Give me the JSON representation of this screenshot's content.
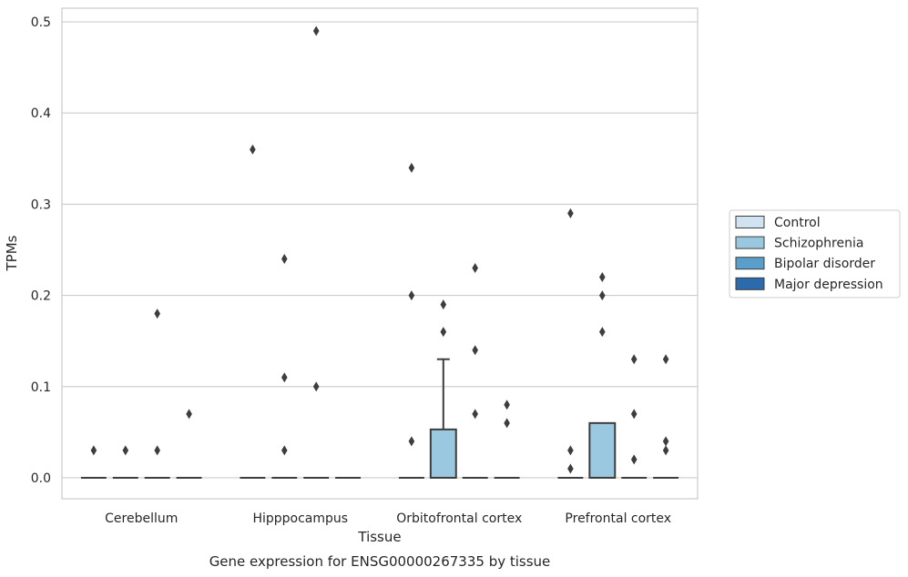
{
  "chart_data": {
    "type": "box",
    "title": "",
    "caption": "Gene expression for ENSG00000267335 by tissue",
    "xlabel": "Tissue",
    "ylabel": "TPMs",
    "ylim": [
      -0.023,
      0.515
    ],
    "yticks": [
      "0.0",
      "0.1",
      "0.2",
      "0.3",
      "0.4",
      "0.5"
    ],
    "ytick_values": [
      0.0,
      0.1,
      0.2,
      0.3,
      0.4,
      0.5
    ],
    "categories": [
      "Cerebellum",
      "Hipppocampus",
      "Orbitofrontal cortex",
      "Prefrontal cortex"
    ],
    "grid": true,
    "legend_position": "right",
    "series": [
      {
        "name": "Control",
        "color": "#d1e2f2",
        "boxes": [
          {
            "q1": 0,
            "median": 0,
            "q3": 0,
            "whisker_low": 0,
            "whisker_high": 0,
            "outliers": [
              0.03
            ]
          },
          {
            "q1": 0,
            "median": 0,
            "q3": 0,
            "whisker_low": 0,
            "whisker_high": 0,
            "outliers": [
              0.36
            ]
          },
          {
            "q1": 0,
            "median": 0,
            "q3": 0,
            "whisker_low": 0,
            "whisker_high": 0,
            "outliers": [
              0.34,
              0.2,
              0.04
            ]
          },
          {
            "q1": 0,
            "median": 0,
            "q3": 0,
            "whisker_low": 0,
            "whisker_high": 0,
            "outliers": [
              0.29,
              0.03,
              0.01
            ]
          }
        ]
      },
      {
        "name": "Schizophrenia",
        "color": "#9ac8e0",
        "boxes": [
          {
            "q1": 0,
            "median": 0,
            "q3": 0,
            "whisker_low": 0,
            "whisker_high": 0,
            "outliers": [
              0.03
            ]
          },
          {
            "q1": 0,
            "median": 0,
            "q3": 0,
            "whisker_low": 0,
            "whisker_high": 0,
            "outliers": [
              0.24,
              0.11,
              0.03
            ]
          },
          {
            "q1": 0,
            "median": 0,
            "q3": 0.053,
            "whisker_low": 0,
            "whisker_high": 0.13,
            "outliers": [
              0.19,
              0.16
            ]
          },
          {
            "q1": 0,
            "median": 0,
            "q3": 0.06,
            "whisker_low": 0,
            "whisker_high": 0.06,
            "outliers": [
              0.22,
              0.2,
              0.16
            ]
          }
        ]
      },
      {
        "name": "Bipolar disorder",
        "color": "#5a9ecb",
        "boxes": [
          {
            "q1": 0,
            "median": 0,
            "q3": 0,
            "whisker_low": 0,
            "whisker_high": 0,
            "outliers": [
              0.18,
              0.03
            ]
          },
          {
            "q1": 0,
            "median": 0,
            "q3": 0,
            "whisker_low": 0,
            "whisker_high": 0,
            "outliers": [
              0.49,
              0.1
            ]
          },
          {
            "q1": 0,
            "median": 0,
            "q3": 0,
            "whisker_low": 0,
            "whisker_high": 0,
            "outliers": [
              0.23,
              0.14,
              0.07
            ]
          },
          {
            "q1": 0,
            "median": 0,
            "q3": 0,
            "whisker_low": 0,
            "whisker_high": 0,
            "outliers": [
              0.13,
              0.07,
              0.02
            ]
          }
        ]
      },
      {
        "name": "Major depression",
        "color": "#2a6aad",
        "boxes": [
          {
            "q1": 0,
            "median": 0,
            "q3": 0,
            "whisker_low": 0,
            "whisker_high": 0,
            "outliers": [
              0.07
            ]
          },
          {
            "q1": 0,
            "median": 0,
            "q3": 0,
            "whisker_low": 0,
            "whisker_high": 0,
            "outliers": []
          },
          {
            "q1": 0,
            "median": 0,
            "q3": 0,
            "whisker_low": 0,
            "whisker_high": 0,
            "outliers": [
              0.08,
              0.06
            ]
          },
          {
            "q1": 0,
            "median": 0,
            "q3": 0,
            "whisker_low": 0,
            "whisker_high": 0,
            "outliers": [
              0.13,
              0.04,
              0.03
            ]
          }
        ]
      }
    ]
  }
}
